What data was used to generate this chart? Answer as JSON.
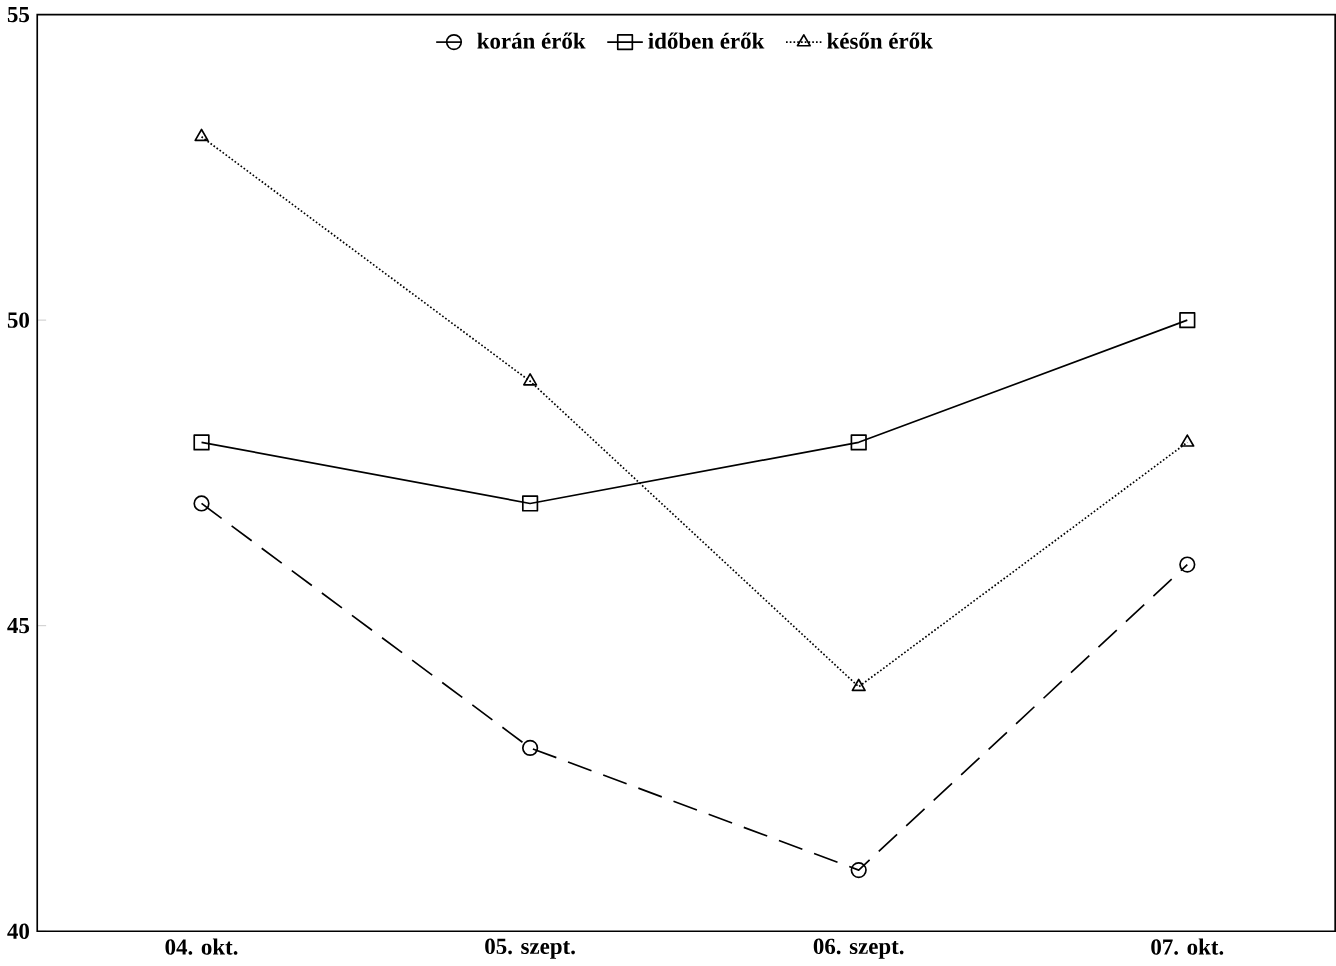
{
  "chart_data": {
    "type": "line",
    "categories": [
      "04. okt.",
      "05. szept.",
      "06. szept.",
      "07. okt."
    ],
    "series": [
      {
        "name": "korán érők",
        "color": "#000000",
        "values": [
          47,
          43,
          41,
          46
        ],
        "marker": "circle",
        "line_style": "dashed"
      },
      {
        "name": "időben érők",
        "color": "#000000",
        "values": [
          48,
          47,
          48,
          50
        ],
        "marker": "square",
        "line_style": "solid"
      },
      {
        "name": "későn érők",
        "color": "#000000",
        "values": [
          53,
          49,
          44,
          48
        ],
        "marker": "triangle",
        "line_style": "dotted"
      }
    ],
    "ylim": [
      40,
      55
    ],
    "yticks": [
      40,
      45,
      50,
      55
    ],
    "grid": false,
    "legend": "top"
  }
}
